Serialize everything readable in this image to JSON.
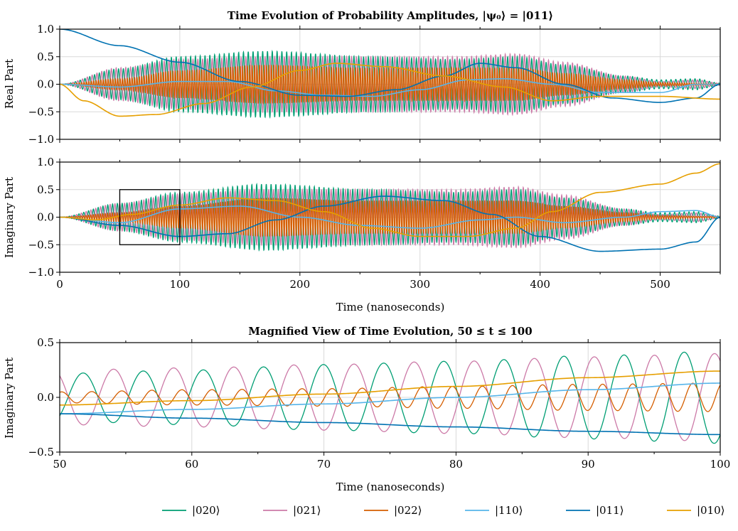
{
  "colors": {
    "020": "#009E73",
    "021": "#CC79A7",
    "022": "#D55E00",
    "110": "#56B4E9",
    "011": "#0072B2",
    "010": "#E69F00"
  },
  "legend": [
    {
      "key": "020",
      "label": "|020⟩"
    },
    {
      "key": "021",
      "label": "|021⟩"
    },
    {
      "key": "022",
      "label": "|022⟩"
    },
    {
      "key": "110",
      "label": "|110⟩"
    },
    {
      "key": "011",
      "label": "|011⟩"
    },
    {
      "key": "010",
      "label": "|010⟩"
    }
  ],
  "chart_data": [
    {
      "id": "real",
      "type": "line",
      "title": "Time Evolution of Probability Amplitudes, |ψ₀⟩ = |011⟩",
      "xlabel": "",
      "ylabel": "Real Part",
      "xlim": [
        0,
        550
      ],
      "ylim": [
        -1.0,
        1.0
      ],
      "xticks": [
        0,
        100,
        200,
        300,
        400,
        500
      ],
      "yticks": [
        -1.0,
        -0.5,
        0.0,
        0.5,
        1.0
      ],
      "ytick_labels": [
        "−1.0",
        "−0.5",
        "0.0",
        "0.5",
        "1.0"
      ],
      "show_xtick_labels": false,
      "grid": true,
      "series": [
        {
          "key": "020",
          "kind": "osc",
          "period": 4.0,
          "phase": 0.0,
          "env": [
            [
              0,
              0
            ],
            [
              50,
              0.28
            ],
            [
              100,
              0.5
            ],
            [
              170,
              0.6
            ],
            [
              260,
              0.5
            ],
            [
              330,
              0.45
            ],
            [
              380,
              0.5
            ],
            [
              420,
              0.35
            ],
            [
              470,
              0.15
            ],
            [
              500,
              0.08
            ],
            [
              530,
              0.1
            ],
            [
              550,
              0.02
            ]
          ]
        },
        {
          "key": "021",
          "kind": "osc",
          "period": 4.0,
          "phase": 3.14159,
          "env": [
            [
              0,
              0
            ],
            [
              50,
              0.3
            ],
            [
              100,
              0.45
            ],
            [
              170,
              0.5
            ],
            [
              260,
              0.5
            ],
            [
              330,
              0.5
            ],
            [
              380,
              0.55
            ],
            [
              420,
              0.4
            ],
            [
              470,
              0.15
            ],
            [
              500,
              0.05
            ],
            [
              530,
              0.08
            ],
            [
              550,
              0.02
            ]
          ]
        },
        {
          "key": "022",
          "kind": "osc",
          "period": 2.0,
          "phase": 0.5,
          "env": [
            [
              0,
              0
            ],
            [
              50,
              0.1
            ],
            [
              100,
              0.25
            ],
            [
              170,
              0.35
            ],
            [
              250,
              0.3
            ],
            [
              330,
              0.3
            ],
            [
              380,
              0.3
            ],
            [
              420,
              0.2
            ],
            [
              470,
              0.08
            ],
            [
              500,
              0.03
            ],
            [
              550,
              0.01
            ]
          ]
        },
        {
          "key": "110",
          "kind": "line",
          "pts": [
            [
              0,
              0
            ],
            [
              50,
              -0.05
            ],
            [
              100,
              0.05
            ],
            [
              140,
              0.05
            ],
            [
              180,
              -0.12
            ],
            [
              220,
              -0.2
            ],
            [
              260,
              -0.22
            ],
            [
              300,
              -0.1
            ],
            [
              340,
              0.08
            ],
            [
              370,
              0.1
            ],
            [
              410,
              0.0
            ],
            [
              450,
              -0.15
            ],
            [
              500,
              -0.15
            ],
            [
              530,
              0.0
            ],
            [
              550,
              0.0
            ]
          ]
        },
        {
          "key": "011",
          "kind": "line",
          "pts": [
            [
              0,
              1.0
            ],
            [
              50,
              0.7
            ],
            [
              100,
              0.4
            ],
            [
              150,
              0.05
            ],
            [
              200,
              -0.2
            ],
            [
              240,
              -0.22
            ],
            [
              280,
              -0.1
            ],
            [
              320,
              0.15
            ],
            [
              350,
              0.38
            ],
            [
              380,
              0.3
            ],
            [
              420,
              0.0
            ],
            [
              460,
              -0.25
            ],
            [
              500,
              -0.33
            ],
            [
              530,
              -0.25
            ],
            [
              550,
              0.0
            ]
          ]
        },
        {
          "key": "010",
          "kind": "line",
          "pts": [
            [
              0,
              0
            ],
            [
              20,
              -0.3
            ],
            [
              50,
              -0.58
            ],
            [
              80,
              -0.55
            ],
            [
              120,
              -0.35
            ],
            [
              160,
              -0.05
            ],
            [
              200,
              0.25
            ],
            [
              230,
              0.38
            ],
            [
              270,
              0.32
            ],
            [
              320,
              0.15
            ],
            [
              370,
              -0.05
            ],
            [
              410,
              -0.3
            ],
            [
              450,
              -0.22
            ],
            [
              500,
              -0.22
            ],
            [
              550,
              -0.27
            ]
          ]
        }
      ]
    },
    {
      "id": "imag",
      "type": "line",
      "title": "",
      "xlabel": "Time (nanoseconds)",
      "ylabel": "Imaginary Part",
      "xlim": [
        0,
        550
      ],
      "ylim": [
        -1.0,
        1.0
      ],
      "xticks": [
        0,
        100,
        200,
        300,
        400,
        500
      ],
      "yticks": [
        -1.0,
        -0.5,
        0.0,
        0.5,
        1.0
      ],
      "ytick_labels": [
        "−1.0",
        "−0.5",
        "0.0",
        "0.5",
        "1.0"
      ],
      "show_xtick_labels": true,
      "grid": true,
      "inset_box": {
        "x0": 50,
        "x1": 100,
        "y0": -0.5,
        "y1": 0.5
      },
      "series": [
        {
          "key": "020",
          "kind": "osc",
          "period": 4.0,
          "phase": 1.57,
          "env": [
            [
              0,
              0
            ],
            [
              50,
              0.25
            ],
            [
              100,
              0.45
            ],
            [
              170,
              0.6
            ],
            [
              260,
              0.5
            ],
            [
              330,
              0.45
            ],
            [
              380,
              0.5
            ],
            [
              420,
              0.35
            ],
            [
              470,
              0.15
            ],
            [
              500,
              0.08
            ],
            [
              530,
              0.1
            ],
            [
              550,
              0.02
            ]
          ]
        },
        {
          "key": "021",
          "kind": "osc",
          "period": 4.0,
          "phase": 4.71,
          "env": [
            [
              0,
              0
            ],
            [
              50,
              0.25
            ],
            [
              100,
              0.42
            ],
            [
              170,
              0.5
            ],
            [
              260,
              0.5
            ],
            [
              330,
              0.5
            ],
            [
              380,
              0.55
            ],
            [
              420,
              0.4
            ],
            [
              470,
              0.15
            ],
            [
              500,
              0.05
            ],
            [
              530,
              0.08
            ],
            [
              550,
              0.02
            ]
          ]
        },
        {
          "key": "022",
          "kind": "osc",
          "period": 2.0,
          "phase": 2.0,
          "env": [
            [
              0,
              0
            ],
            [
              50,
              0.08
            ],
            [
              100,
              0.2
            ],
            [
              170,
              0.35
            ],
            [
              250,
              0.3
            ],
            [
              330,
              0.3
            ],
            [
              380,
              0.3
            ],
            [
              420,
              0.2
            ],
            [
              470,
              0.08
            ],
            [
              500,
              0.03
            ],
            [
              550,
              0.01
            ]
          ]
        },
        {
          "key": "110",
          "kind": "line",
          "pts": [
            [
              0,
              0
            ],
            [
              50,
              -0.1
            ],
            [
              100,
              0.15
            ],
            [
              150,
              0.2
            ],
            [
              200,
              0.0
            ],
            [
              250,
              -0.15
            ],
            [
              300,
              -0.2
            ],
            [
              350,
              -0.05
            ],
            [
              380,
              0.0
            ],
            [
              420,
              -0.1
            ],
            [
              470,
              0.0
            ],
            [
              500,
              0.1
            ],
            [
              530,
              0.12
            ],
            [
              550,
              0.0
            ]
          ]
        },
        {
          "key": "011",
          "kind": "line",
          "pts": [
            [
              0,
              0
            ],
            [
              50,
              -0.15
            ],
            [
              100,
              -0.35
            ],
            [
              140,
              -0.3
            ],
            [
              180,
              -0.05
            ],
            [
              220,
              0.2
            ],
            [
              270,
              0.38
            ],
            [
              320,
              0.3
            ],
            [
              360,
              0.05
            ],
            [
              400,
              -0.35
            ],
            [
              450,
              -0.62
            ],
            [
              500,
              -0.58
            ],
            [
              530,
              -0.45
            ],
            [
              550,
              0.0
            ]
          ]
        },
        {
          "key": "010",
          "kind": "line",
          "pts": [
            [
              0,
              0
            ],
            [
              30,
              -0.05
            ],
            [
              60,
              0.05
            ],
            [
              100,
              0.22
            ],
            [
              140,
              0.35
            ],
            [
              180,
              0.3
            ],
            [
              220,
              0.1
            ],
            [
              260,
              -0.2
            ],
            [
              300,
              -0.35
            ],
            [
              340,
              -0.35
            ],
            [
              380,
              -0.2
            ],
            [
              410,
              0.1
            ],
            [
              450,
              0.45
            ],
            [
              500,
              0.6
            ],
            [
              530,
              0.8
            ],
            [
              550,
              0.97
            ]
          ]
        }
      ]
    },
    {
      "id": "zoom",
      "type": "line",
      "title": "Magnified View of Time Evolution, 50 ≤ t ≤ 100",
      "xlabel": "Time (nanoseconds)",
      "ylabel": "Imaginary Part",
      "xlim": [
        50,
        100
      ],
      "ylim": [
        -0.5,
        0.5
      ],
      "xticks": [
        50,
        60,
        70,
        80,
        90,
        100
      ],
      "yticks": [
        -0.5,
        0.0,
        0.5
      ],
      "ytick_labels": [
        "−0.5",
        "0.0",
        "0.5"
      ],
      "show_xtick_labels": true,
      "grid": true,
      "series": [
        {
          "key": "020",
          "kind": "osc",
          "period": 4.55,
          "phase": -0.8,
          "env": [
            [
              50,
              0.22
            ],
            [
              60,
              0.25
            ],
            [
              70,
              0.3
            ],
            [
              80,
              0.33
            ],
            [
              90,
              0.38
            ],
            [
              100,
              0.42
            ]
          ]
        },
        {
          "key": "021",
          "kind": "osc",
          "period": 4.55,
          "phase": 2.3,
          "env": [
            [
              50,
              0.25
            ],
            [
              60,
              0.27
            ],
            [
              70,
              0.3
            ],
            [
              80,
              0.33
            ],
            [
              90,
              0.37
            ],
            [
              100,
              0.4
            ]
          ]
        },
        {
          "key": "022",
          "kind": "osc",
          "period": 2.275,
          "phase": 1.3,
          "env": [
            [
              50,
              0.05
            ],
            [
              60,
              0.07
            ],
            [
              70,
              0.08
            ],
            [
              80,
              0.1
            ],
            [
              90,
              0.12
            ],
            [
              100,
              0.13
            ]
          ]
        },
        {
          "key": "110",
          "kind": "line",
          "pts": [
            [
              50,
              -0.15
            ],
            [
              60,
              -0.11
            ],
            [
              70,
              -0.06
            ],
            [
              80,
              0.0
            ],
            [
              90,
              0.07
            ],
            [
              100,
              0.13
            ]
          ]
        },
        {
          "key": "011",
          "kind": "line",
          "pts": [
            [
              50,
              -0.15
            ],
            [
              60,
              -0.19
            ],
            [
              70,
              -0.23
            ],
            [
              80,
              -0.27
            ],
            [
              90,
              -0.31
            ],
            [
              100,
              -0.34
            ]
          ]
        },
        {
          "key": "010",
          "kind": "line",
          "pts": [
            [
              50,
              -0.07
            ],
            [
              60,
              -0.03
            ],
            [
              70,
              0.03
            ],
            [
              80,
              0.1
            ],
            [
              90,
              0.18
            ],
            [
              100,
              0.24
            ]
          ]
        }
      ]
    }
  ]
}
